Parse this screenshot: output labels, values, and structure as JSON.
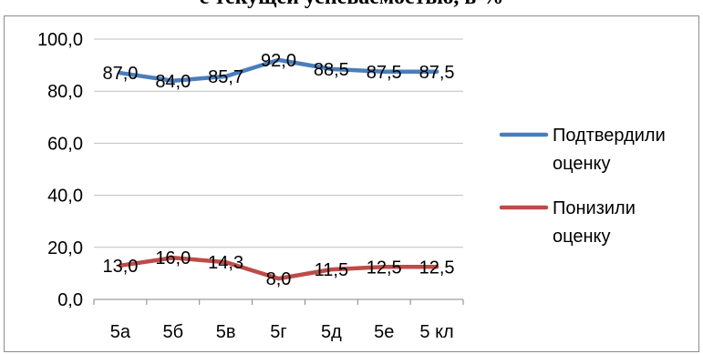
{
  "chart_data": {
    "type": "line",
    "title": "с текущей успеваемостью, в %",
    "categories": [
      "5а",
      "5б",
      "5в",
      "5г",
      "5д",
      "5е",
      "5 кл"
    ],
    "ylim": [
      0,
      100
    ],
    "yticks": [
      "0,0",
      "20,0",
      "40,0",
      "60,0",
      "80,0",
      "100,0"
    ],
    "grid": true,
    "legend_position": "right",
    "series": [
      {
        "name": "Подтвердили оценку",
        "name_lines": [
          "Подтвердили",
          "оценку"
        ],
        "color": "#4a7ebb",
        "values": [
          87.0,
          84.0,
          85.7,
          92.0,
          88.5,
          87.5,
          87.5
        ],
        "labels": [
          "87,0",
          "84,0",
          "85,7",
          "92,0",
          "88,5",
          "87,5",
          "87,5"
        ]
      },
      {
        "name": "Понизили оценку",
        "name_lines": [
          "Понизили",
          "оценку"
        ],
        "color": "#be4b48",
        "values": [
          13.0,
          16.0,
          14.3,
          8.0,
          11.5,
          12.5,
          12.5
        ],
        "labels": [
          "13,0",
          "16,0",
          "14,3",
          "8,0",
          "11,5",
          "12,5",
          "12,5"
        ]
      }
    ]
  }
}
